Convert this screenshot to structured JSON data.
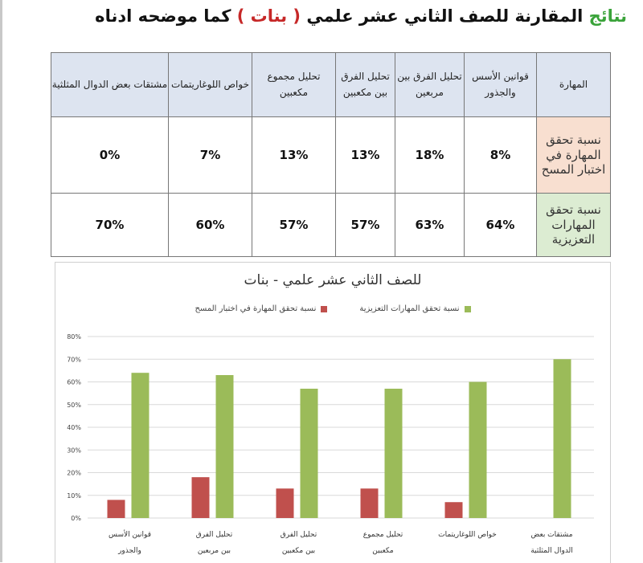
{
  "title": {
    "part1": "نتائج",
    "part2": " المقارنة للصف الثاني عشر علمي ",
    "part3": " ( بنات ) ",
    "part4": "كما موضحه ادناه"
  },
  "table": {
    "corner": "المهارة",
    "headers": [
      "قوانين الأسس والجذور",
      "تحليل الفرق بين مربعين",
      "تحليل الفرق بين مكعبين",
      "تحليل مجموع مكعبين",
      "خواص اللوغاريتمات",
      "مشتقات بعض الدوال المثلثية"
    ],
    "rows": [
      {
        "label": "نسبة تحقق المهارة في اختبار المسح",
        "values": [
          "8%",
          "18%",
          "13%",
          "13%",
          "7%",
          "0%"
        ]
      },
      {
        "label": "نسبة تحقق المهارات التعزيزية",
        "values": [
          "64%",
          "63%",
          "57%",
          "57%",
          "60%",
          "70%"
        ]
      }
    ]
  },
  "colors": {
    "red": "#c0504d",
    "green": "#9bbb59",
    "title_green": "#3aa33a",
    "title_red": "#c62828"
  },
  "chart_data": {
    "type": "bar",
    "title": "للصف الثاني عشر علمي - بنات",
    "categories": [
      "قوانين الأسس والجذور",
      "تحليل الفرق بين مربعين",
      "تحليل الفرق بين مكعبين",
      "تحليل مجموع مكعبين",
      "خواص اللوغاريتمات",
      "مشتقات بعض الدوال المثلثية"
    ],
    "series": [
      {
        "name": "نسبة تحقق المهارة في اختبار المسح",
        "values": [
          8,
          18,
          13,
          13,
          7,
          0
        ],
        "color": "#c0504d"
      },
      {
        "name": "نسبة تحقق المهارات التعزيزية",
        "values": [
          64,
          63,
          57,
          57,
          60,
          70
        ],
        "color": "#9bbb59"
      }
    ],
    "ytick_labels": [
      "0%",
      "10%",
      "20%",
      "30%",
      "40%",
      "50%",
      "60%",
      "70%",
      "80%"
    ],
    "ylim": [
      0,
      80
    ],
    "grid": true,
    "legend_position": "top"
  }
}
